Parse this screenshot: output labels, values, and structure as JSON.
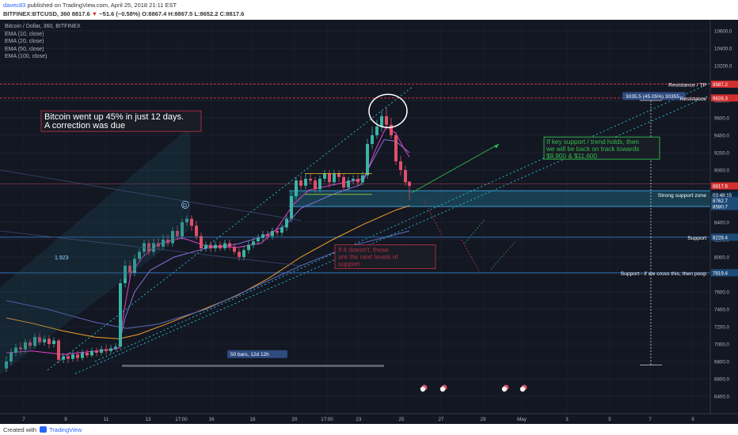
{
  "header": {
    "user": "davec83",
    "published": "published on TradingView.com, April 25, 2018 21:11 EST",
    "symbol": "BITFINEX:BTCUSD, 360",
    "last": "8817.6",
    "change_arrow": "▼",
    "change": "−51.6 (−0.58%)",
    "ohlc": "O:8867.4 H:8867.5 L:8652.2 C:8817.6"
  },
  "legend": {
    "title": "Bitcoin / Dollar, 360, BITFINEX",
    "indicators": [
      "EMA (10, close)",
      "EMA (20, close)",
      "EMA (50, close)",
      "EMA (100, close)"
    ]
  },
  "price_axis": {
    "ticks": [
      "10600.0",
      "10400.0",
      "10200.0",
      "10000.0",
      "9800.0",
      "9600.0",
      "9400.0",
      "9200.0",
      "9000.0",
      "8800.0",
      "8600.0",
      "8400.0",
      "8200.0",
      "8000.0",
      "7800.0",
      "7600.0",
      "7400.0",
      "7200.0",
      "7000.0",
      "6800.0",
      "6600.0",
      "6400.0"
    ],
    "markers": [
      {
        "label": "9987.2",
        "color": "#d32f2f"
      },
      {
        "label": "9828.3",
        "color": "#d32f2f"
      },
      {
        "label": "8817.6",
        "color": "#d32f2f"
      },
      {
        "label": "03:48:15",
        "color": "#0d2a45"
      },
      {
        "label": "8762.7",
        "color": "#1e4a78"
      },
      {
        "label": "8580.7",
        "color": "#1e4a78"
      },
      {
        "label": "8228.4",
        "color": "#1e4a78"
      },
      {
        "label": "7819.4",
        "color": "#1e4a78"
      }
    ]
  },
  "time_axis": {
    "ticks": [
      "7",
      "9",
      "11",
      "13",
      "17:00",
      "16",
      "18",
      "20",
      "17:00",
      "23",
      "25",
      "27",
      "29",
      "May",
      "3",
      "5",
      "7",
      "9"
    ]
  },
  "annotations": {
    "main_note_line1": "Bitcoin went up 45% in just 12 days.",
    "main_note_line2": "A correction was due",
    "green_note_line1": "If key support / trend holds, then",
    "green_note_line2": "we will be back on track towards",
    "green_note_line3": "$9,900 & $11,600",
    "red_note_line1": "If it doesn't, these",
    "red_note_line2": "are the next levels of",
    "red_note_line3": "support",
    "measure_label": "3035.5 (45.05%) 30355",
    "bars_label": "50 bars, 12d 12h",
    "fib_label": "1.923",
    "d_label": "D",
    "resistance_tp": "Resistance / TP",
    "resistance": "Resistance",
    "strong_support": "Strong support zone",
    "support": "Support",
    "support_poop": "Support - if we cross this, then poop"
  },
  "footer": {
    "created_with": "Created with",
    "brand": "TradingView"
  },
  "colors": {
    "background": "#131722",
    "up": "#3bb3a4",
    "down": "#e0506a",
    "ema10": "#e040c8",
    "ema20": "#8a6fdc",
    "ema50": "#f0a030",
    "ema100": "#5c6ab8",
    "resistance": "#d32f2f",
    "support": "#2f6fb5",
    "channel": "#26c6da"
  }
}
